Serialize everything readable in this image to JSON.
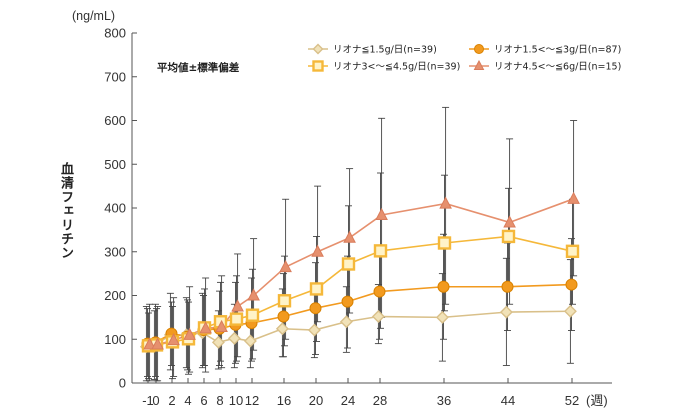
{
  "chart_data": {
    "type": "line",
    "y_unit": "(ng/mL)",
    "x_unit": "(週)",
    "ylabel": "血清フェリチン",
    "note": "平均値±標準偏差",
    "ylim": [
      0,
      800
    ],
    "y_ticks": [
      "0",
      "100",
      "200",
      "300",
      "400",
      "500",
      "600",
      "700",
      "800"
    ],
    "x": [
      -1,
      0,
      2,
      4,
      6,
      8,
      10,
      12,
      16,
      20,
      24,
      28,
      36,
      44,
      52
    ],
    "x_tick_labels": [
      "-1",
      "0",
      "2",
      "4",
      "6",
      "8",
      "10",
      "12",
      "16",
      "20",
      "24",
      "28",
      "36",
      "44",
      "52"
    ],
    "grid": false,
    "legend_position": "top-right",
    "series": [
      {
        "name": "リオナ≦1.5g/日(n=39)",
        "color": "#d9c08a",
        "marker": "diamond",
        "x": [
          -1,
          0,
          2,
          4,
          6,
          8,
          10,
          12,
          16,
          20,
          24,
          28,
          36,
          44,
          52
        ],
        "values": [
          83,
          85,
          110,
          110,
          115,
          93,
          102,
          96,
          124,
          121,
          140,
          152,
          150,
          162,
          164
        ],
        "upper": [
          175,
          165,
          205,
          195,
          205,
          165,
          180,
          168,
          215,
          210,
          220,
          225,
          250,
          285,
          282
        ],
        "lower": [
          5,
          8,
          30,
          35,
          35,
          32,
          35,
          35,
          60,
          58,
          70,
          90,
          50,
          40,
          45
        ]
      },
      {
        "name": "リオナ1.5<～≦3g/日(n=87)",
        "color": "#f29a1f",
        "marker": "circle",
        "x": [
          -1,
          0,
          2,
          4,
          6,
          8,
          10,
          12,
          16,
          20,
          24,
          28,
          36,
          44,
          52
        ],
        "values": [
          90,
          93,
          113,
          106,
          121,
          124,
          133,
          137,
          152,
          171,
          186,
          209,
          220,
          220,
          225
        ],
        "upper": [
          170,
          180,
          185,
          190,
          200,
          210,
          230,
          240,
          250,
          275,
          290,
          310,
          340,
          320,
          330
        ],
        "lower": [
          15,
          15,
          40,
          30,
          40,
          40,
          45,
          50,
          60,
          65,
          80,
          100,
          100,
          120,
          120
        ]
      },
      {
        "name": "リオナ3<～≦4.5g/日(n=39)",
        "color": "#f5b83a",
        "marker": "square",
        "x": [
          -1,
          0,
          2,
          4,
          6,
          8,
          10,
          12,
          16,
          20,
          24,
          28,
          36,
          44,
          52
        ],
        "values": [
          85,
          87,
          94,
          101,
          126,
          140,
          146,
          155,
          188,
          215,
          272,
          302,
          320,
          335,
          301
        ],
        "upper": [
          160,
          170,
          175,
          185,
          215,
          230,
          245,
          260,
          290,
          335,
          405,
          480,
          475,
          445,
          420
        ],
        "lower": [
          10,
          5,
          10,
          20,
          40,
          50,
          50,
          55,
          85,
          95,
          140,
          125,
          165,
          225,
          180
        ]
      },
      {
        "name": "リオナ4.5<～≦6g/日(n=15)",
        "color": "#e6906e",
        "marker": "triangle",
        "x": [
          -1,
          0,
          2,
          4,
          6,
          8,
          10,
          12,
          16,
          20,
          24,
          28,
          36,
          44,
          52
        ],
        "values": [
          88,
          88,
          98,
          110,
          125,
          128,
          175,
          200,
          265,
          300,
          332,
          384,
          410,
          367,
          421
        ],
        "upper": [
          180,
          175,
          195,
          220,
          240,
          245,
          295,
          330,
          420,
          450,
          490,
          605,
          630,
          558,
          600
        ],
        "lower": [
          5,
          5,
          15,
          25,
          25,
          35,
          60,
          75,
          100,
          140,
          160,
          150,
          180,
          180,
          245
        ]
      }
    ]
  }
}
